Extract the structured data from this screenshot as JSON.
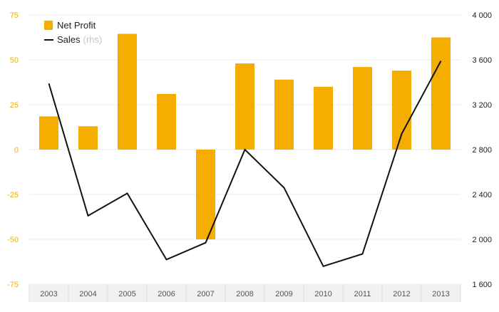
{
  "colors": {
    "bar": "#F5AE00",
    "line": "#111111",
    "left_axis_text": "#F5AE00",
    "grid": "#ebebeb",
    "x_axis_band": "#f1f1f1"
  },
  "legend": {
    "bar_label": "Net Profit",
    "line_label": "Sales",
    "line_suffix": "(rhs)",
    "placement": "top-left"
  },
  "chart_data": {
    "type": "bar",
    "categories": [
      "2003",
      "2004",
      "2005",
      "2006",
      "2007",
      "2008",
      "2009",
      "2010",
      "2011",
      "2012",
      "2013"
    ],
    "series": [
      {
        "name": "Net Profit",
        "type": "bar",
        "axis": "left",
        "values": [
          18.5,
          13,
          64.5,
          31,
          -50,
          48,
          39,
          35,
          46,
          44,
          62.5
        ]
      },
      {
        "name": "Sales",
        "type": "line",
        "axis": "right",
        "values": [
          3390,
          2210,
          2410,
          1820,
          1970,
          2800,
          2460,
          1760,
          1870,
          2940,
          3590
        ]
      }
    ],
    "left_axis": {
      "ylim": [
        -75,
        75
      ],
      "ticks": [
        75,
        50,
        25,
        0,
        -25,
        -50,
        -75
      ],
      "tick_labels": [
        "75",
        "50",
        "25",
        "0",
        "-25",
        "-50",
        "-75"
      ]
    },
    "right_axis": {
      "ylim": [
        1600,
        4000
      ],
      "ticks": [
        4000,
        3600,
        3200,
        2800,
        2400,
        2000,
        1600
      ],
      "tick_labels": [
        "4 000",
        "3 600",
        "3 200",
        "2 800",
        "2 400",
        "2 000",
        "1 600"
      ]
    },
    "grid": true,
    "title": "",
    "xlabel": "",
    "ylabel": ""
  }
}
